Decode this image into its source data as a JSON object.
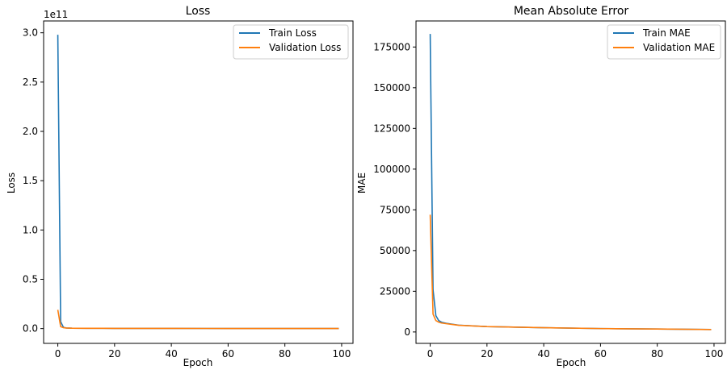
{
  "chart_data": [
    {
      "type": "line",
      "title": "Loss",
      "xlabel": "Epoch",
      "ylabel": "Loss",
      "offset_text": "1e11",
      "xlim": [
        -5,
        104
      ],
      "ylim": [
        -0.15,
        3.12
      ],
      "xticks": [
        0,
        20,
        40,
        60,
        80,
        100
      ],
      "xtick_labels": [
        "0",
        "20",
        "40",
        "60",
        "80",
        "100"
      ],
      "yticks": [
        0.0,
        0.5,
        1.0,
        1.5,
        2.0,
        2.5,
        3.0
      ],
      "ytick_labels": [
        "0.0",
        "0.5",
        "1.0",
        "1.5",
        "2.0",
        "2.5",
        "3.0"
      ],
      "grid": false,
      "legend": "upper right",
      "series": [
        {
          "name": "Train Loss",
          "color": "#1f77b4",
          "points": [
            [
              0,
              2.98
            ],
            [
              1,
              0.07
            ],
            [
              2,
              0.012
            ],
            [
              3,
              0.006
            ],
            [
              5,
              0.004
            ],
            [
              10,
              0.003
            ],
            [
              20,
              0.002
            ],
            [
              40,
              0.0015
            ],
            [
              60,
              0.001
            ],
            [
              80,
              0.0008
            ],
            [
              99,
              0.0006
            ]
          ]
        },
        {
          "name": "Validation Loss",
          "color": "#ff7f0e",
          "points": [
            [
              0,
              0.19
            ],
            [
              1,
              0.02
            ],
            [
              2,
              0.009
            ],
            [
              3,
              0.006
            ],
            [
              5,
              0.004
            ],
            [
              10,
              0.003
            ],
            [
              20,
              0.002
            ],
            [
              40,
              0.0015
            ],
            [
              60,
              0.001
            ],
            [
              80,
              0.0008
            ],
            [
              99,
              0.0006
            ]
          ]
        }
      ]
    },
    {
      "type": "line",
      "title": "Mean Absolute Error",
      "xlabel": "Epoch",
      "ylabel": "MAE",
      "xlim": [
        -5,
        104
      ],
      "ylim": [
        -7000,
        191000
      ],
      "xticks": [
        0,
        20,
        40,
        60,
        80,
        100
      ],
      "xtick_labels": [
        "0",
        "20",
        "40",
        "60",
        "80",
        "100"
      ],
      "yticks": [
        0,
        25000,
        50000,
        75000,
        100000,
        125000,
        150000,
        175000
      ],
      "ytick_labels": [
        "0",
        "25000",
        "50000",
        "75000",
        "100000",
        "125000",
        "150000",
        "175000"
      ],
      "grid": false,
      "legend": "upper right",
      "series": [
        {
          "name": "Train MAE",
          "color": "#1f77b4",
          "points": [
            [
              0,
              183000
            ],
            [
              1,
              26000
            ],
            [
              2,
              10000
            ],
            [
              3,
              7000
            ],
            [
              4,
              6000
            ],
            [
              6,
              5200
            ],
            [
              10,
              4200
            ],
            [
              20,
              3300
            ],
            [
              40,
              2600
            ],
            [
              60,
              2100
            ],
            [
              80,
              1800
            ],
            [
              99,
              1500
            ]
          ]
        },
        {
          "name": "Validation MAE",
          "color": "#ff7f0e",
          "points": [
            [
              0,
              72000
            ],
            [
              1,
              11000
            ],
            [
              2,
              7000
            ],
            [
              3,
              6000
            ],
            [
              4,
              5500
            ],
            [
              6,
              5000
            ],
            [
              10,
              4100
            ],
            [
              20,
              3300
            ],
            [
              40,
              2600
            ],
            [
              60,
              2100
            ],
            [
              80,
              1800
            ],
            [
              99,
              1500
            ]
          ]
        }
      ]
    }
  ]
}
